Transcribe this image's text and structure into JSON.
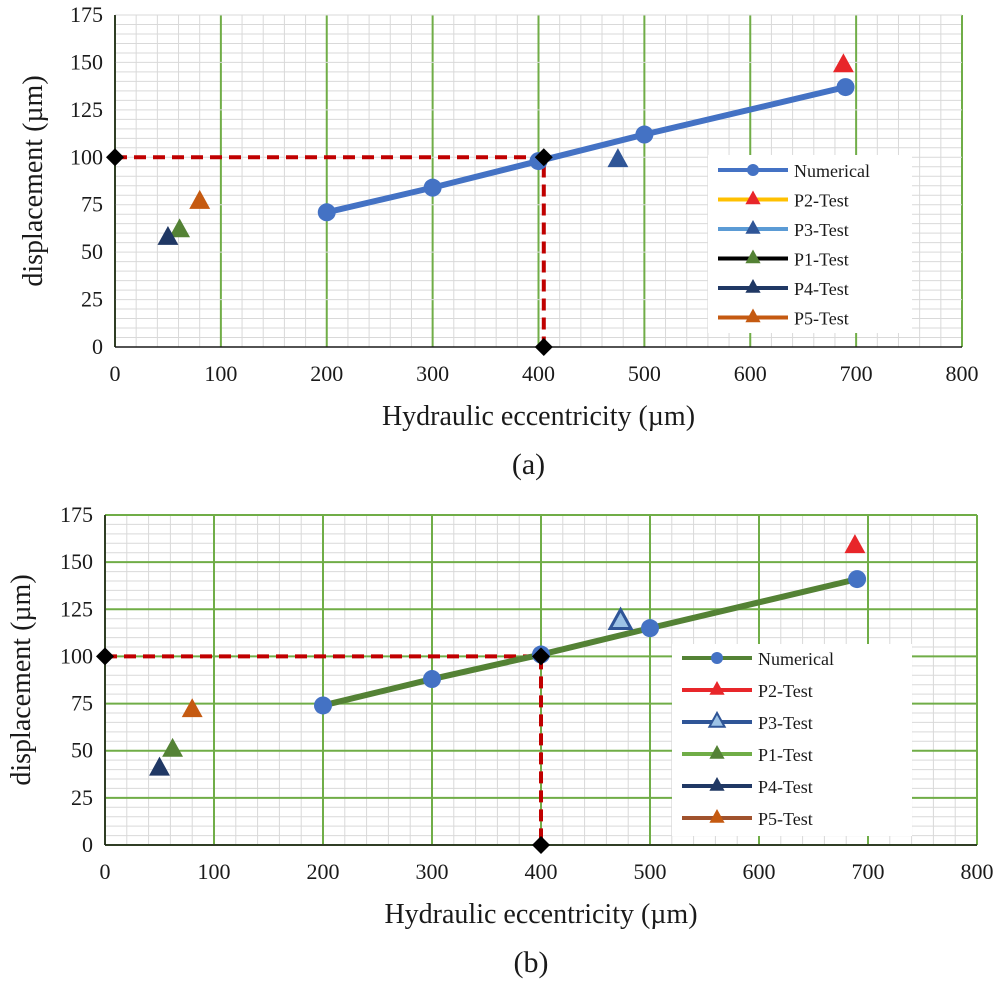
{
  "charts": [
    {
      "type": "line",
      "panel_label": "(a)",
      "xlabel": "Hydraulic eccentricity (µm)",
      "ylabel": "displacement (µm)",
      "xlim": [
        0,
        800
      ],
      "ylim": [
        0,
        175
      ],
      "xticks": [
        0,
        100,
        200,
        300,
        400,
        500,
        600,
        700,
        800
      ],
      "yticks": [
        0,
        25,
        50,
        75,
        100,
        125,
        150,
        175
      ],
      "line_color": "#4472C4",
      "grid_color": "#70AD47",
      "minor_grid_color": "#d9d9d9",
      "numerical": {
        "name": "Numerical",
        "x": [
          200,
          300,
          400,
          500,
          690
        ],
        "y": [
          71,
          84,
          98,
          112,
          137
        ]
      },
      "tests": [
        {
          "name": "P2-Test",
          "x": 688,
          "y": 149,
          "color": "#E8262A",
          "legend_color": "#FFC000",
          "outline": false
        },
        {
          "name": "P3-Test",
          "x": 475,
          "y": 99,
          "color": "#2F5597",
          "legend_color": "#5B9BD5",
          "outline": false
        },
        {
          "name": "P1-Test",
          "x": 61,
          "y": 62,
          "color": "#548235",
          "legend_color": "#000000",
          "outline": false
        },
        {
          "name": "P4-Test",
          "x": 50,
          "y": 58,
          "color": "#203864",
          "legend_color": "#203864",
          "outline": false
        },
        {
          "name": "P5-Test",
          "x": 80,
          "y": 77,
          "color": "#C55A11",
          "legend_color": "#C55A11",
          "outline": false
        }
      ],
      "guide": {
        "x": 405,
        "y": 100,
        "color": "#C00000"
      }
    },
    {
      "type": "line",
      "panel_label": "(b)",
      "xlabel": "Hydraulic eccentricity (µm)",
      "ylabel": "displacement (µm)",
      "xlim": [
        0,
        800
      ],
      "ylim": [
        0,
        175
      ],
      "xticks": [
        0,
        100,
        200,
        300,
        400,
        500,
        600,
        700,
        800
      ],
      "yticks": [
        0,
        25,
        50,
        75,
        100,
        125,
        150,
        175
      ],
      "line_color": "#548235",
      "grid_color": "#70AD47",
      "minor_grid_color": "#d9d9d9",
      "numerical": {
        "name": "Numerical",
        "x": [
          200,
          300,
          400,
          500,
          690
        ],
        "y": [
          74,
          88,
          101,
          115,
          141
        ]
      },
      "tests": [
        {
          "name": "P2-Test",
          "x": 688,
          "y": 159,
          "color": "#E8262A",
          "legend_color": "#E8262A",
          "outline": false
        },
        {
          "name": "P3-Test",
          "x": 473,
          "y": 119,
          "color": "#9DC3E6",
          "legend_color": "#2F5597",
          "outline": true
        },
        {
          "name": "P1-Test",
          "x": 62,
          "y": 51,
          "color": "#548235",
          "legend_color": "#70AD47",
          "outline": false
        },
        {
          "name": "P4-Test",
          "x": 50,
          "y": 41,
          "color": "#203864",
          "legend_color": "#203864",
          "outline": false
        },
        {
          "name": "P5-Test",
          "x": 80,
          "y": 72,
          "color": "#C55A11",
          "legend_color": "#A0522D",
          "outline": false
        }
      ],
      "guide": {
        "x": 400,
        "y": 100,
        "color": "#C00000"
      }
    }
  ]
}
